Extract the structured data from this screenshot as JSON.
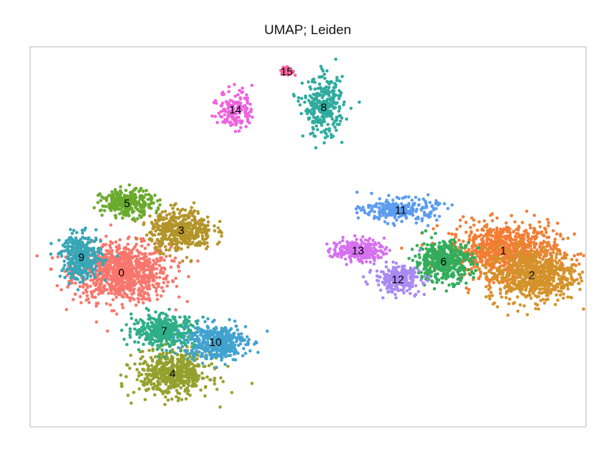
{
  "chart_data": {
    "type": "scatter",
    "title": "UMAP; Leiden",
    "xlabel": "",
    "ylabel": "",
    "grid": false,
    "legend": "none",
    "clusters": [
      {
        "label": "0",
        "color": "#f8766d",
        "center": [
          3.2,
          6.9
        ],
        "spread": [
          1.7,
          1.3
        ],
        "n": 900
      },
      {
        "label": "1",
        "color": "#f47c33",
        "center": [
          16.6,
          7.9
        ],
        "spread": [
          1.9,
          1.2
        ],
        "n": 800
      },
      {
        "label": "2",
        "color": "#d4922a",
        "center": [
          17.6,
          6.8
        ],
        "spread": [
          1.6,
          1.2
        ],
        "n": 700
      },
      {
        "label": "3",
        "color": "#b39429",
        "center": [
          5.3,
          8.8
        ],
        "spread": [
          1.1,
          0.9
        ],
        "n": 450
      },
      {
        "label": "4",
        "color": "#94a12d",
        "center": [
          5.0,
          2.4
        ],
        "spread": [
          1.3,
          1.0
        ],
        "n": 550
      },
      {
        "label": "5",
        "color": "#6aaa2e",
        "center": [
          3.4,
          10.0
        ],
        "spread": [
          0.9,
          0.6
        ],
        "n": 300
      },
      {
        "label": "6",
        "color": "#33ad5c",
        "center": [
          14.5,
          7.4
        ],
        "spread": [
          1.0,
          0.9
        ],
        "n": 450
      },
      {
        "label": "7",
        "color": "#2fae86",
        "center": [
          4.7,
          4.3
        ],
        "spread": [
          1.1,
          0.7
        ],
        "n": 400
      },
      {
        "label": "8",
        "color": "#2fab9e",
        "center": [
          10.3,
          14.3
        ],
        "spread": [
          0.7,
          1.3
        ],
        "n": 300
      },
      {
        "label": "9",
        "color": "#38a6b6",
        "center": [
          1.8,
          7.6
        ],
        "spread": [
          0.7,
          1.0
        ],
        "n": 350
      },
      {
        "label": "10",
        "color": "#41a2cf",
        "center": [
          6.5,
          3.8
        ],
        "spread": [
          1.1,
          0.8
        ],
        "n": 400
      },
      {
        "label": "11",
        "color": "#5c9cf0",
        "center": [
          13.0,
          9.7
        ],
        "spread": [
          1.3,
          0.5
        ],
        "n": 250
      },
      {
        "label": "12",
        "color": "#a98af2",
        "center": [
          12.9,
          6.6
        ],
        "spread": [
          0.8,
          0.6
        ],
        "n": 250
      },
      {
        "label": "13",
        "color": "#d66ff0",
        "center": [
          11.5,
          7.9
        ],
        "spread": [
          0.9,
          0.5
        ],
        "n": 200
      },
      {
        "label": "14",
        "color": "#ee62de",
        "center": [
          7.2,
          14.2
        ],
        "spread": [
          0.6,
          0.9
        ],
        "n": 150
      },
      {
        "label": "15",
        "color": "#f6639d",
        "center": [
          9.0,
          15.9
        ],
        "spread": [
          0.25,
          0.2
        ],
        "n": 40
      }
    ],
    "xlim": [
      0,
      19.5
    ],
    "ylim": [
      0,
      17
    ]
  }
}
